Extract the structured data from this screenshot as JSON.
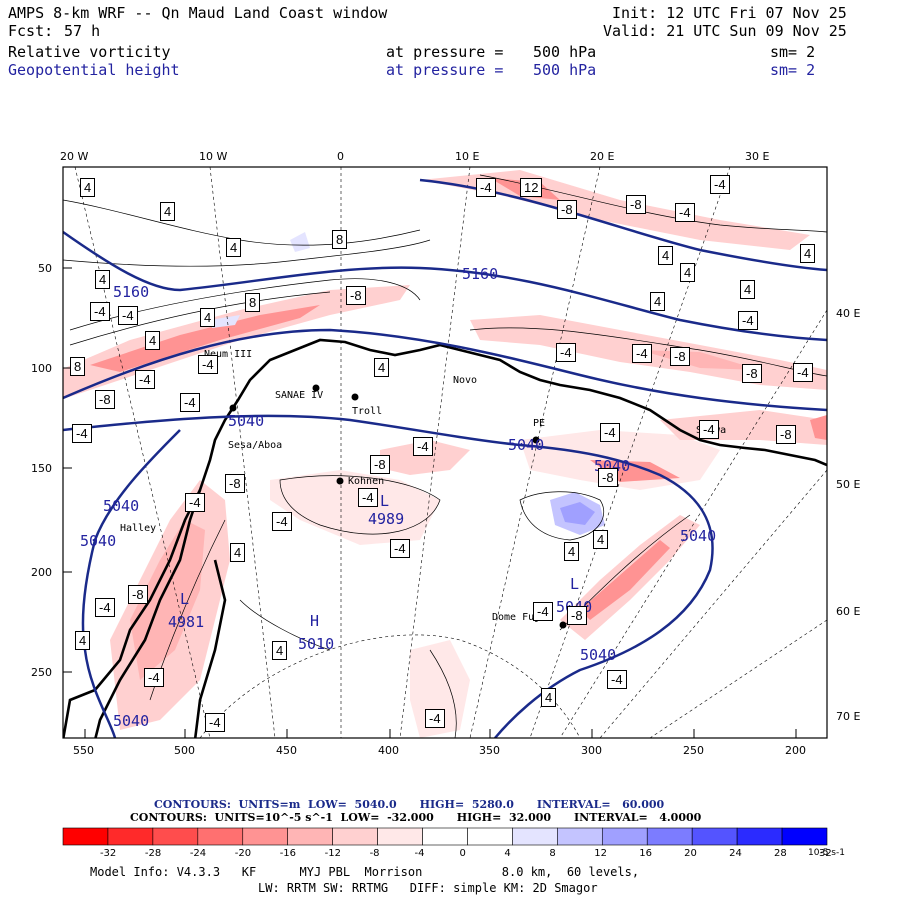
{
  "header": {
    "title": "AMPS 8-km WRF -- Qn Maud Land Coast window",
    "init": "Init: 12 UTC Fri 07 Nov 25",
    "fcst_label": "Fcst:",
    "fcst_value": "57 h",
    "valid": "Valid: 21 UTC Sun 09 Nov 25",
    "field1": "Relative vorticity",
    "field2": "Geopotential height",
    "pressure_label": "at pressure =",
    "pressure_value": "500 hPa",
    "sm1": "sm= 2",
    "sm2": "sm= 2"
  },
  "axes": {
    "top": [
      "20 W",
      "10 W",
      "0",
      "10 E",
      "20 E",
      "30 E"
    ],
    "left": [
      "50",
      "100",
      "150",
      "200",
      "250"
    ],
    "bottom": [
      "550",
      "500",
      "450",
      "400",
      "350",
      "300",
      "250",
      "200"
    ],
    "right": [
      "40 E",
      "50 E",
      "60 E",
      "70 E"
    ]
  },
  "stations": [
    "Neum III",
    "SANAE IV",
    "Troll",
    "Novo",
    "Sesa/Aboa",
    "Kohnen",
    "Halley",
    "PE",
    "Syowa",
    "Dome Fuji"
  ],
  "height_labels": [
    "5160",
    "5160",
    "5040",
    "5040",
    "5040",
    "5040",
    "5040",
    "5040",
    "5040",
    "5040",
    "5040",
    "4989",
    "4981",
    "5010"
  ],
  "extrema": {
    "low": "L",
    "high": "H"
  },
  "vort_labels": [
    "4",
    "-4",
    "8",
    "-8",
    "12"
  ],
  "contour_info": {
    "line1": "CONTOURS:  UNITS=m  LOW=  5040.0      HIGH=  5280.0      INTERVAL=   60.000",
    "line2": "CONTOURS:  UNITS=10^-5 s^-1  LOW=  -32.000      HIGH=  32.000      INTERVAL=   4.0000"
  },
  "colorbar": {
    "ticks": [
      "-32",
      "-28",
      "-24",
      "-20",
      "-16",
      "-12",
      "-8",
      "-4",
      "0",
      "4",
      "8",
      "12",
      "16",
      "20",
      "24",
      "28",
      "32"
    ],
    "units": "10-5 s-1",
    "colors": [
      "#ff0000",
      "#ff2a2a",
      "#ff4d4d",
      "#ff7070",
      "#ff9393",
      "#ffb5b5",
      "#ffd0d0",
      "#ffe8e8",
      "#ffffff",
      "#ffffff",
      "#e4e4ff",
      "#c4c4ff",
      "#a0a0ff",
      "#7c7cff",
      "#5454ff",
      "#2b2bff",
      "#0000ff"
    ]
  },
  "footer": {
    "model": "Model Info: V4.3.3   KF      MYJ PBL  Morrison           8.0 km,  60 levels,",
    "physics": "LW: RRTM SW: RRTMG   DIFF: simple KM: 2D Smagor"
  }
}
